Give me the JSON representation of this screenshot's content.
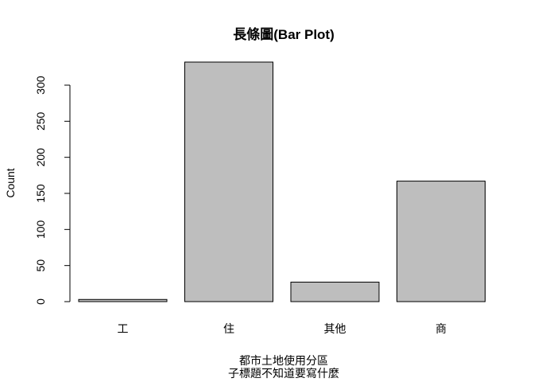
{
  "chart_data": {
    "type": "bar",
    "title": "長條圖(Bar Plot)",
    "xlabel": "都市土地使用分區",
    "subtitle": "子標題不知道要寫什麼",
    "ylabel": "Count",
    "categories": [
      "工",
      "住",
      "其他",
      "商"
    ],
    "values": [
      3,
      332,
      27,
      167
    ],
    "ylim": [
      0,
      332
    ],
    "yticks": [
      "0",
      "50",
      "100",
      "150",
      "200",
      "250",
      "300"
    ],
    "grid": false,
    "legend": "none",
    "colors": {
      "bar_fill": "#bebebe",
      "bar_stroke": "#000000",
      "axis": "#000000",
      "text": "#000000"
    }
  }
}
